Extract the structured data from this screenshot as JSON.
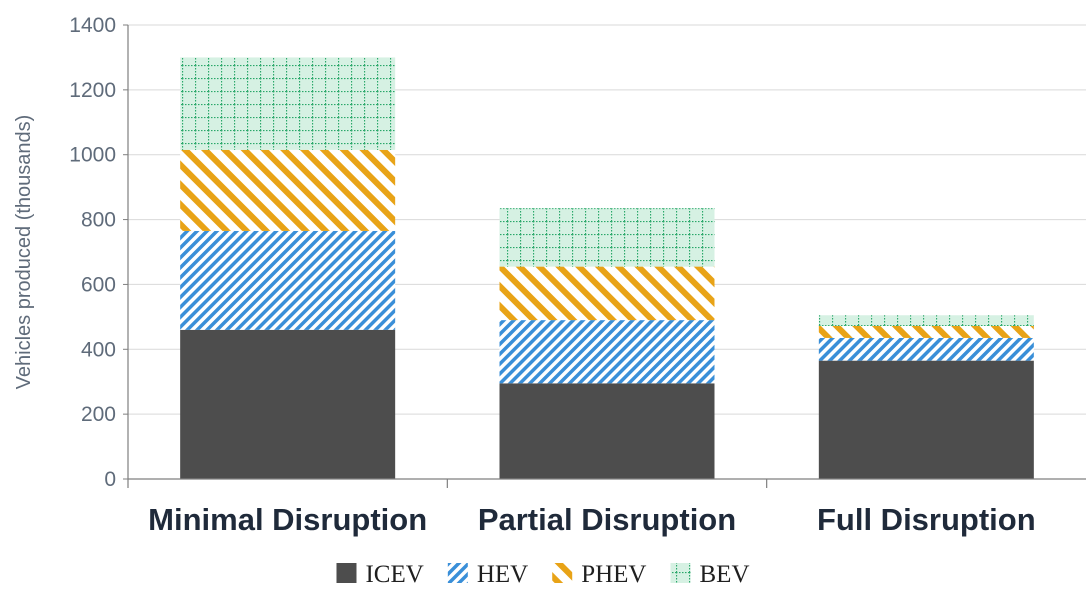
{
  "chart_data": {
    "type": "bar",
    "stacked": true,
    "categories": [
      "Minimal Disruption",
      "Partial Disruption",
      "Full Disruption"
    ],
    "ylabel": "Vehicles produced (thousands)",
    "ylim": [
      0,
      1400
    ],
    "yticks": [
      0,
      200,
      400,
      600,
      800,
      1000,
      1200,
      1400
    ],
    "grid": true,
    "legend_position": "bottom",
    "series": [
      {
        "name": "ICEV",
        "values": [
          460,
          295,
          365
        ],
        "color": "#4d4d4d",
        "pattern": "solid"
      },
      {
        "name": "HEV",
        "values": [
          305,
          195,
          70
        ],
        "color": "#3a8fd8",
        "pattern": "diagonal-stripes"
      },
      {
        "name": "PHEV",
        "values": [
          250,
          165,
          37
        ],
        "color": "#e8a317",
        "pattern": "wide-diagonal-stripes"
      },
      {
        "name": "BEV",
        "values": [
          285,
          180,
          33
        ],
        "color": "#2aa86a",
        "pattern": "dotted-grid"
      }
    ],
    "colors": {
      "axis_text": "#5f6b7a",
      "grid": "#d9d9d9",
      "axis_line": "#7f7f7f",
      "category_text": "#1f2a3a"
    }
  }
}
